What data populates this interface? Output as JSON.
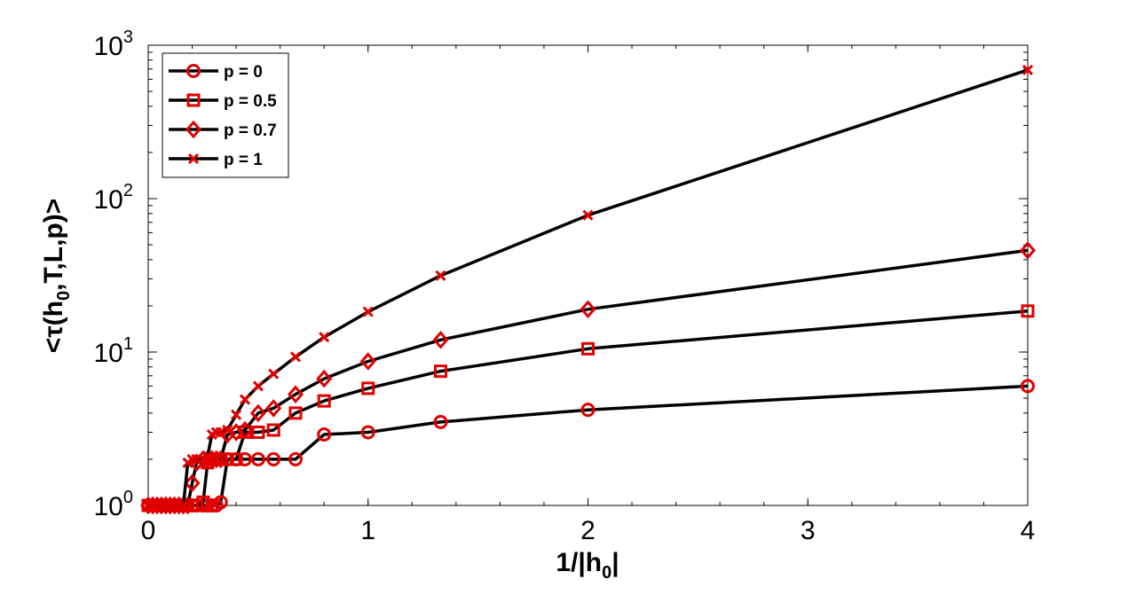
{
  "chart_data": {
    "type": "line",
    "title": "",
    "xlabel": {
      "main": "1/|h",
      "sub": "0",
      "tail": "|"
    },
    "ylabel": {
      "pre": "<τ(h",
      "sub": "0",
      "post": ",T,L,p)>"
    },
    "x_ticks": [
      {
        "value": 0,
        "label": "0"
      },
      {
        "value": 1,
        "label": "1"
      },
      {
        "value": 2,
        "label": "2"
      },
      {
        "value": 3,
        "label": "3"
      },
      {
        "value": 4,
        "label": "4"
      }
    ],
    "y_ticks": [
      {
        "value": 1,
        "base": "10",
        "exp": "0"
      },
      {
        "value": 10,
        "base": "10",
        "exp": "1"
      },
      {
        "value": 100,
        "base": "10",
        "exp": "2"
      },
      {
        "value": 1000,
        "base": "10",
        "exp": "3"
      }
    ],
    "xlim": [
      0,
      4
    ],
    "ylim": [
      1,
      1000
    ],
    "y_scale": "log",
    "grid": false,
    "legend_position": "top-left",
    "line_color": "#000000",
    "marker_color": "#e00000",
    "series": [
      {
        "name": "p = 0",
        "marker": "circle",
        "points": [
          [
            0.0,
            1
          ],
          [
            0.02,
            1
          ],
          [
            0.04,
            1
          ],
          [
            0.06,
            1
          ],
          [
            0.08,
            1
          ],
          [
            0.1,
            1
          ],
          [
            0.12,
            1
          ],
          [
            0.14,
            1
          ],
          [
            0.16,
            1
          ],
          [
            0.18,
            1
          ],
          [
            0.2,
            1
          ],
          [
            0.22,
            1
          ],
          [
            0.25,
            1
          ],
          [
            0.27,
            1
          ],
          [
            0.29,
            1
          ],
          [
            0.31,
            1
          ],
          [
            0.33,
            1.05
          ],
          [
            0.36,
            2
          ],
          [
            0.4,
            2
          ],
          [
            0.44,
            2
          ],
          [
            0.5,
            2
          ],
          [
            0.57,
            2
          ],
          [
            0.67,
            2
          ],
          [
            0.8,
            2.9
          ],
          [
            1.0,
            3.0
          ],
          [
            1.33,
            3.5
          ],
          [
            2.0,
            4.2
          ],
          [
            4.0,
            6.0
          ]
        ]
      },
      {
        "name": "p = 0.5",
        "marker": "square",
        "points": [
          [
            0.0,
            1
          ],
          [
            0.02,
            1
          ],
          [
            0.04,
            1
          ],
          [
            0.06,
            1
          ],
          [
            0.08,
            1
          ],
          [
            0.1,
            1
          ],
          [
            0.12,
            1
          ],
          [
            0.14,
            1
          ],
          [
            0.16,
            1
          ],
          [
            0.18,
            1
          ],
          [
            0.2,
            1
          ],
          [
            0.22,
            1
          ],
          [
            0.25,
            1.05
          ],
          [
            0.27,
            1.9
          ],
          [
            0.29,
            2
          ],
          [
            0.31,
            2
          ],
          [
            0.33,
            2
          ],
          [
            0.36,
            2
          ],
          [
            0.4,
            2
          ],
          [
            0.44,
            3
          ],
          [
            0.5,
            3
          ],
          [
            0.57,
            3.1
          ],
          [
            0.67,
            4.0
          ],
          [
            0.8,
            4.8
          ],
          [
            1.0,
            5.8
          ],
          [
            1.33,
            7.5
          ],
          [
            2.0,
            10.5
          ],
          [
            4.0,
            18.5
          ]
        ]
      },
      {
        "name": "p = 0.7",
        "marker": "diamond",
        "points": [
          [
            0.0,
            1
          ],
          [
            0.02,
            1
          ],
          [
            0.04,
            1
          ],
          [
            0.06,
            1
          ],
          [
            0.08,
            1
          ],
          [
            0.1,
            1
          ],
          [
            0.12,
            1
          ],
          [
            0.14,
            1
          ],
          [
            0.16,
            1
          ],
          [
            0.18,
            1
          ],
          [
            0.2,
            1.4
          ],
          [
            0.22,
            1.9
          ],
          [
            0.25,
            2
          ],
          [
            0.27,
            2
          ],
          [
            0.29,
            2
          ],
          [
            0.31,
            2
          ],
          [
            0.33,
            2
          ],
          [
            0.36,
            2.9
          ],
          [
            0.4,
            3.0
          ],
          [
            0.44,
            3.1
          ],
          [
            0.5,
            4.0
          ],
          [
            0.57,
            4.3
          ],
          [
            0.67,
            5.3
          ],
          [
            0.8,
            6.7
          ],
          [
            1.0,
            8.7
          ],
          [
            1.33,
            12.0
          ],
          [
            2.0,
            19.0
          ],
          [
            4.0,
            46.0
          ]
        ]
      },
      {
        "name": "p = 1",
        "marker": "x",
        "points": [
          [
            0.0,
            1
          ],
          [
            0.02,
            1
          ],
          [
            0.04,
            1
          ],
          [
            0.06,
            1
          ],
          [
            0.08,
            1
          ],
          [
            0.1,
            1
          ],
          [
            0.12,
            1
          ],
          [
            0.14,
            1
          ],
          [
            0.16,
            1
          ],
          [
            0.18,
            1.9
          ],
          [
            0.2,
            2
          ],
          [
            0.22,
            2
          ],
          [
            0.25,
            2
          ],
          [
            0.27,
            2.1
          ],
          [
            0.29,
            2.9
          ],
          [
            0.31,
            3.0
          ],
          [
            0.33,
            3.0
          ],
          [
            0.36,
            3.1
          ],
          [
            0.4,
            3.9
          ],
          [
            0.44,
            4.9
          ],
          [
            0.5,
            6.0
          ],
          [
            0.57,
            7.2
          ],
          [
            0.67,
            9.3
          ],
          [
            0.8,
            12.5
          ],
          [
            1.0,
            18.3
          ],
          [
            1.33,
            31.5
          ],
          [
            2.0,
            78.0
          ],
          [
            4.0,
            690.0
          ]
        ]
      }
    ]
  }
}
